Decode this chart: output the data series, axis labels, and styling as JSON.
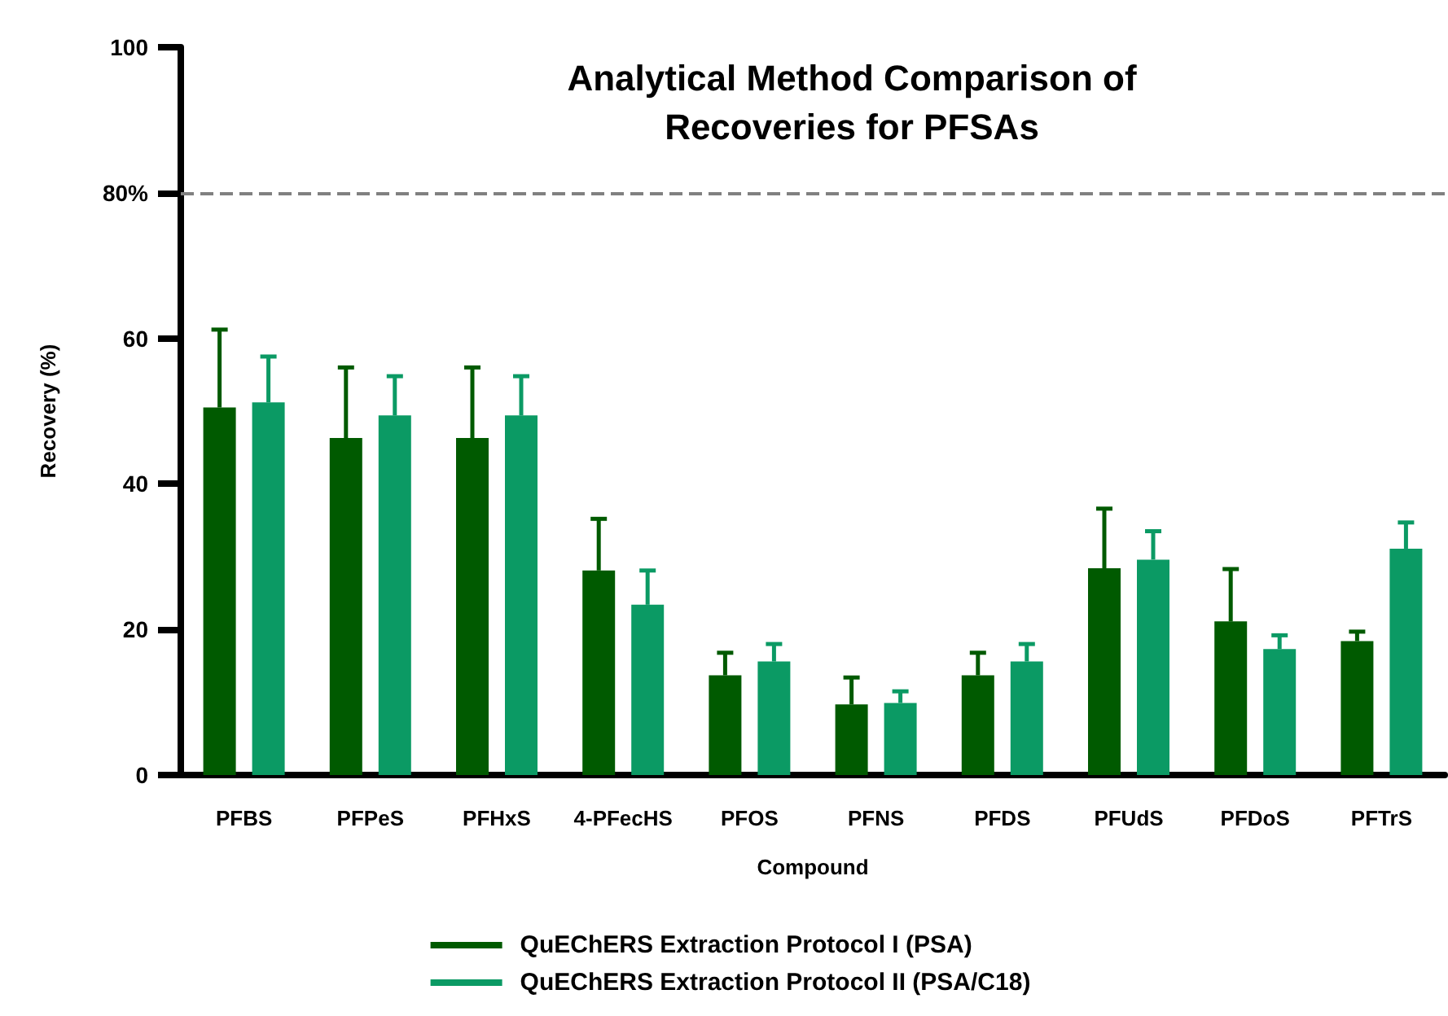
{
  "chart_data": {
    "type": "bar",
    "title": "Analytical Method Comparison of\nRecoveries for PFSAs",
    "xlabel": "Compound",
    "ylabel": "Recovery (%)",
    "categories": [
      "PFBS",
      "PFPeS",
      "PFHxS",
      "4-PFecHS",
      "PFOS",
      "PFNS",
      "PFDS",
      "PFUdS",
      "PFDoS",
      "PFTrS"
    ],
    "series": [
      {
        "name": "QuEChERS Extraction Protocol I (PSA)",
        "color": "#005a00",
        "values": [
          50.5,
          46.3,
          46.3,
          28.1,
          13.7,
          9.7,
          13.7,
          28.4,
          21.1,
          18.4
        ],
        "errors": [
          [
            50.5,
            61.2
          ],
          [
            46.3,
            56.0
          ],
          [
            46.3,
            56.0
          ],
          [
            28.1,
            35.2
          ],
          [
            13.7,
            16.8
          ],
          [
            9.7,
            13.4
          ],
          [
            13.7,
            16.8
          ],
          [
            28.4,
            36.6
          ],
          [
            21.1,
            28.3
          ],
          [
            18.4,
            19.7
          ]
        ]
      },
      {
        "name": "QuEChERS Extraction Protocol II (PSA/C18)",
        "color": "#0b9a64",
        "values": [
          51.2,
          49.4,
          49.4,
          23.4,
          15.6,
          9.9,
          15.6,
          29.6,
          17.3,
          31.1
        ],
        "errors": [
          [
            51.2,
            57.5
          ],
          [
            49.4,
            54.8
          ],
          [
            49.4,
            54.8
          ],
          [
            23.4,
            28.1
          ],
          [
            15.6,
            18.0
          ],
          [
            9.9,
            11.5
          ],
          [
            15.6,
            18.0
          ],
          [
            29.6,
            33.5
          ],
          [
            17.3,
            19.2
          ],
          [
            31.1,
            34.7
          ]
        ]
      }
    ],
    "ylim": [
      0,
      100
    ],
    "yticks": [
      0,
      20,
      40,
      60,
      {
        "value": 80,
        "label": "80%"
      },
      100
    ],
    "ref_lines": [
      {
        "axis": "y",
        "value": 80,
        "color": "#808080",
        "line_style": "dashed"
      }
    ],
    "grid": false,
    "legend": "bottom"
  }
}
